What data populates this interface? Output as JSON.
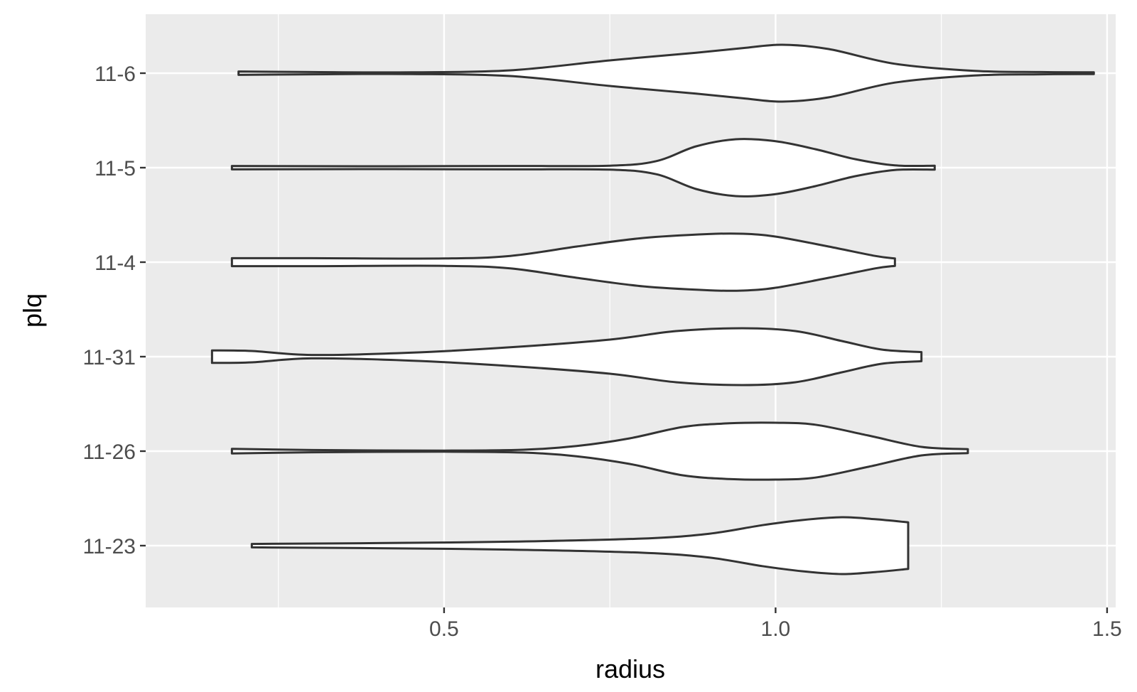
{
  "chart_data": {
    "type": "violin",
    "orientation": "horizontal",
    "title": "",
    "xlabel": "radius",
    "ylabel": "plq",
    "xlim": [
      0.14,
      1.55
    ],
    "xticks": [
      0.5,
      1.0,
      1.5
    ],
    "xtick_labels": [
      "0.5",
      "1.0",
      "1.5"
    ],
    "categories": [
      "11-23",
      "11-26",
      "11-31",
      "11-4",
      "11-5",
      "11-6"
    ],
    "grid": true,
    "panel_background": "#ebebeb",
    "grid_color": "#ffffff",
    "violin_fill": "#ffffff",
    "violin_stroke": "#333333",
    "violins": [
      {
        "category": "11-23",
        "x": [
          0.21,
          0.4,
          0.6,
          0.8,
          0.9,
          0.98,
          1.04,
          1.1,
          1.15,
          1.2
        ],
        "density": [
          0.06,
          0.09,
          0.14,
          0.25,
          0.42,
          0.72,
          0.9,
          1.0,
          0.93,
          0.82
        ]
      },
      {
        "category": "11-26",
        "x": [
          0.18,
          0.3,
          0.5,
          0.62,
          0.7,
          0.78,
          0.86,
          0.93,
          1.0,
          1.06,
          1.14,
          1.22,
          1.29
        ],
        "density": [
          0.08,
          0.04,
          0.02,
          0.05,
          0.18,
          0.45,
          0.85,
          0.98,
          1.0,
          0.93,
          0.55,
          0.15,
          0.07
        ]
      },
      {
        "category": "11-31",
        "x": [
          0.15,
          0.21,
          0.3,
          0.45,
          0.6,
          0.75,
          0.85,
          0.95,
          1.03,
          1.1,
          1.16,
          1.22
        ],
        "density": [
          0.22,
          0.2,
          0.06,
          0.14,
          0.33,
          0.6,
          0.9,
          1.0,
          0.9,
          0.55,
          0.25,
          0.16
        ]
      },
      {
        "category": "11-4",
        "x": [
          0.18,
          0.3,
          0.5,
          0.6,
          0.7,
          0.8,
          0.9,
          0.95,
          1.0,
          1.08,
          1.15,
          1.18
        ],
        "density": [
          0.14,
          0.14,
          0.13,
          0.22,
          0.55,
          0.85,
          0.99,
          1.0,
          0.9,
          0.55,
          0.22,
          0.13
        ]
      },
      {
        "category": "11-5",
        "x": [
          0.18,
          0.4,
          0.6,
          0.75,
          0.82,
          0.88,
          0.94,
          1.0,
          1.06,
          1.12,
          1.18,
          1.24
        ],
        "density": [
          0.06,
          0.05,
          0.06,
          0.07,
          0.23,
          0.75,
          1.0,
          0.93,
          0.65,
          0.3,
          0.08,
          0.07
        ]
      },
      {
        "category": "11-6",
        "x": [
          0.19,
          0.3,
          0.45,
          0.6,
          0.75,
          0.88,
          0.95,
          1.01,
          1.08,
          1.18,
          1.3,
          1.4,
          1.48
        ],
        "density": [
          0.06,
          0.04,
          0.03,
          0.1,
          0.45,
          0.72,
          0.88,
          1.0,
          0.85,
          0.33,
          0.08,
          0.04,
          0.03
        ]
      }
    ]
  }
}
